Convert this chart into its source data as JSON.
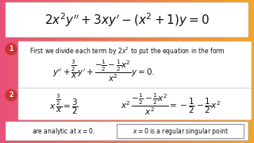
{
  "bg_gradient_left": "#e8507a",
  "bg_gradient_right": "#f5a623",
  "box1_text": "$2x^2y'' + 3xy' - (x^2+1)y = 0$",
  "circle1_color": "#cc3333",
  "circle2_color": "#cc3333",
  "step1_text": "First we divide each term by $2x^2$ to put the equation in the form",
  "step1_eq": "$y'' + \\dfrac{\\frac{3}{2}}{x}y' + \\dfrac{-\\frac{1}{2} - \\frac{1}{2}x^2}{x^2}y = 0.$",
  "step2_eq1": "$x\\,\\dfrac{\\frac{3}{2}}{x} = \\dfrac{3}{2}$",
  "step2_eq2": "$x^2\\,\\dfrac{-\\frac{1}{2} - \\frac{1}{2}x^2}{x^2} = -\\dfrac{1}{2} - \\dfrac{1}{2}x^2$",
  "step3_text1": "are analytic at $x = 0$.",
  "step3_text2": "$x = 0$ is a regular singular point",
  "box_bg": "#ffffff",
  "text_color": "#111111",
  "box_edge": "#bbbbbb"
}
